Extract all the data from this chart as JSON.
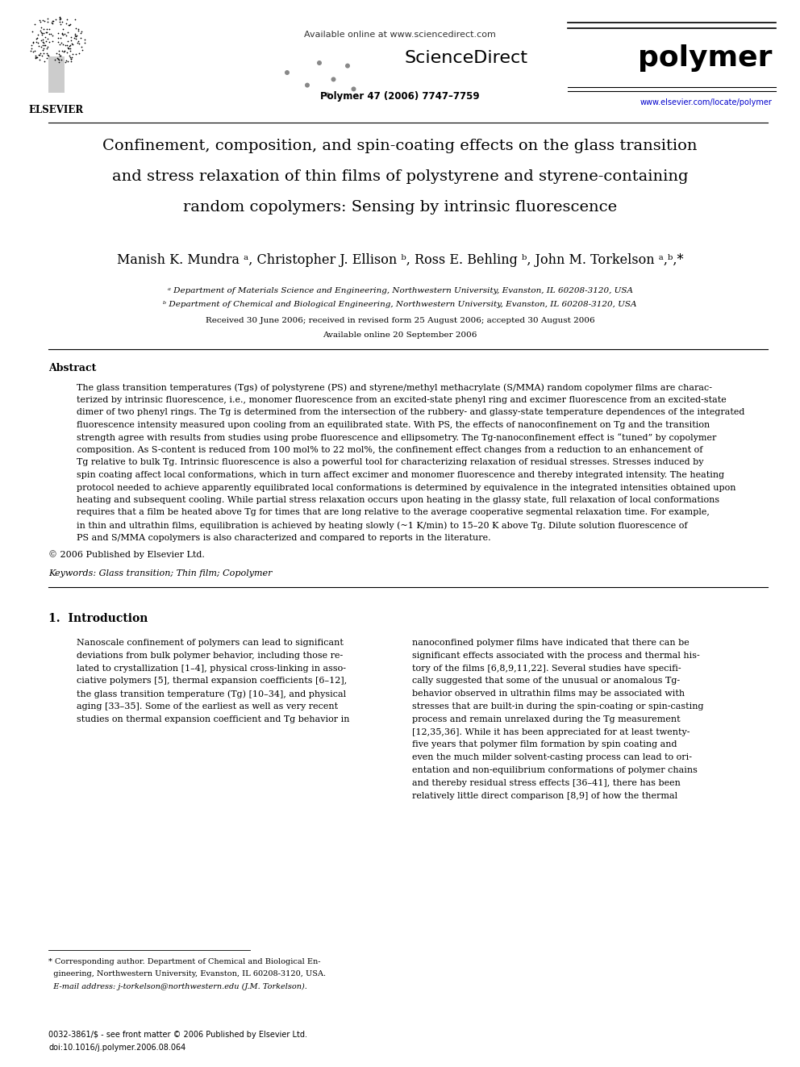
{
  "page_width": 9.92,
  "page_height": 13.23,
  "bg_color": "#ffffff",
  "avail_online": "Available online at www.sciencedirect.com",
  "sciencedirect": "ScienceDirect",
  "polymer_label": "polymer",
  "journal_ref": "Polymer 47 (2006) 7747–7759",
  "journal_url": "www.elsevier.com/locate/polymer",
  "elsevier_label": "ELSEVIER",
  "title_line1": "Confinement, composition, and spin-coating effects on the glass transition",
  "title_line2": "and stress relaxation of thin films of polystyrene and styrene-containing",
  "title_line3": "random copolymers: Sensing by intrinsic fluorescence",
  "authors_line": "Manish K. Mundra ᵃ, Christopher J. Ellison ᵇ, Ross E. Behling ᵇ, John M. Torkelson ᵃ,ᵇ,*",
  "affil_a": "ᵃ Department of Materials Science and Engineering, Northwestern University, Evanston, IL 60208-3120, USA",
  "affil_b": "ᵇ Department of Chemical and Biological Engineering, Northwestern University, Evanston, IL 60208-3120, USA",
  "received": "Received 30 June 2006; received in revised form 25 August 2006; accepted 30 August 2006",
  "avail_online2": "Available online 20 September 2006",
  "abstract_head": "Abstract",
  "abstract_lines": [
    "The glass transition temperatures (Tgs) of polystyrene (PS) and styrene/methyl methacrylate (S/MMA) random copolymer films are charac-",
    "terized by intrinsic fluorescence, i.e., monomer fluorescence from an excited-state phenyl ring and excimer fluorescence from an excited-state",
    "dimer of two phenyl rings. The Tg is determined from the intersection of the rubbery- and glassy-state temperature dependences of the integrated",
    "fluorescence intensity measured upon cooling from an equilibrated state. With PS, the effects of nanoconfinement on Tg and the transition",
    "strength agree with results from studies using probe fluorescence and ellipsometry. The Tg-nanoconfinement effect is “tuned” by copolymer",
    "composition. As S-content is reduced from 100 mol% to 22 mol%, the confinement effect changes from a reduction to an enhancement of",
    "Tg relative to bulk Tg. Intrinsic fluorescence is also a powerful tool for characterizing relaxation of residual stresses. Stresses induced by",
    "spin coating affect local conformations, which in turn affect excimer and monomer fluorescence and thereby integrated intensity. The heating",
    "protocol needed to achieve apparently equilibrated local conformations is determined by equivalence in the integrated intensities obtained upon",
    "heating and subsequent cooling. While partial stress relaxation occurs upon heating in the glassy state, full relaxation of local conformations",
    "requires that a film be heated above Tg for times that are long relative to the average cooperative segmental relaxation time. For example,",
    "in thin and ultrathin films, equilibration is achieved by heating slowly (~1 K/min) to 15–20 K above Tg. Dilute solution fluorescence of",
    "PS and S/MMA copolymers is also characterized and compared to reports in the literature."
  ],
  "copyright_line": "© 2006 Published by Elsevier Ltd.",
  "keywords_line": "Keywords: Glass transition; Thin film; Copolymer",
  "intro_head": "1.  Introduction",
  "intro_col1": [
    "Nanoscale confinement of polymers can lead to significant",
    "deviations from bulk polymer behavior, including those re-",
    "lated to crystallization [1–4], physical cross-linking in asso-",
    "ciative polymers [5], thermal expansion coefficients [6–12],",
    "the glass transition temperature (Tg) [10–34], and physical",
    "aging [33–35]. Some of the earliest as well as very recent",
    "studies on thermal expansion coefficient and Tg behavior in"
  ],
  "intro_col2": [
    "nanoconfined polymer films have indicated that there can be",
    "significant effects associated with the process and thermal his-",
    "tory of the films [6,8,9,11,22]. Several studies have specifi-",
    "cally suggested that some of the unusual or anomalous Tg-",
    "behavior observed in ultrathin films may be associated with",
    "stresses that are built-in during the spin-coating or spin-casting",
    "process and remain unrelaxed during the Tg measurement",
    "[12,35,36]. While it has been appreciated for at least twenty-",
    "five years that polymer film formation by spin coating and",
    "even the much milder solvent-casting process can lead to ori-",
    "entation and non-equilibrium conformations of polymer chains",
    "and thereby residual stress effects [36–41], there has been",
    "relatively little direct comparison [8,9] of how the thermal"
  ],
  "footnote_lines": [
    "* Corresponding author. Department of Chemical and Biological En-",
    "  gineering, Northwestern University, Evanston, IL 60208-3120, USA.",
    "  E-mail address: j-torkelson@northwestern.edu (J.M. Torkelson)."
  ],
  "footer_lines": [
    "0032-3861/$ - see front matter © 2006 Published by Elsevier Ltd.",
    "doi:10.1016/j.polymer.2006.08.064"
  ]
}
